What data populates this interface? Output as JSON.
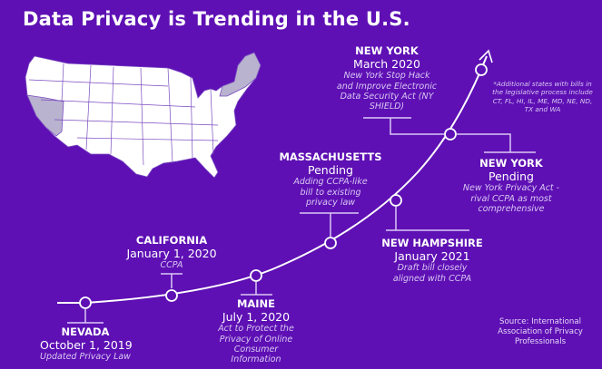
{
  "title": "Data Privacy is Trending in the U.S.",
  "colors": {
    "background": "#5e10b4",
    "map_fill": "#ffffff",
    "highlighted_states": "#b9b3cf",
    "line": "#ffffff"
  },
  "map": {
    "highlighted_states": [
      "California",
      "Nevada",
      "New York",
      "Maine",
      "New Hampshire",
      "Massachusetts"
    ]
  },
  "milestones": [
    {
      "state": "NEVADA",
      "date": "October 1, 2019",
      "description": "Updated Privacy Law"
    },
    {
      "state": "CALIFORNIA",
      "date": "January 1, 2020",
      "description": "CCPA"
    },
    {
      "state": "MAINE",
      "date": "July 1, 2020",
      "description": "Act to Protect the Privacy of Online Consumer Information"
    },
    {
      "state": "MASSACHUSETTS",
      "date": "Pending",
      "description": "Adding CCPA-like bill to existing privacy law"
    },
    {
      "state": "NEW HAMPSHIRE",
      "date": "January 2021",
      "description": "Draft bill closely aligned with CCPA"
    },
    {
      "state": "NEW YORK",
      "date": "March 2020",
      "description": "New York Stop Hack and Improve Electronic Data Security Act (NY SHIELD)"
    },
    {
      "state": "NEW YORK",
      "date": "Pending",
      "description": "New York Privacy Act - rival CCPA as most comprehensive"
    }
  ],
  "note": "*Additional states with bills in the legislative process include CT, FL, HI, IL, ME, MD, NE, ND, TX and WA",
  "source": "Source: International Association of Privacy Professionals"
}
